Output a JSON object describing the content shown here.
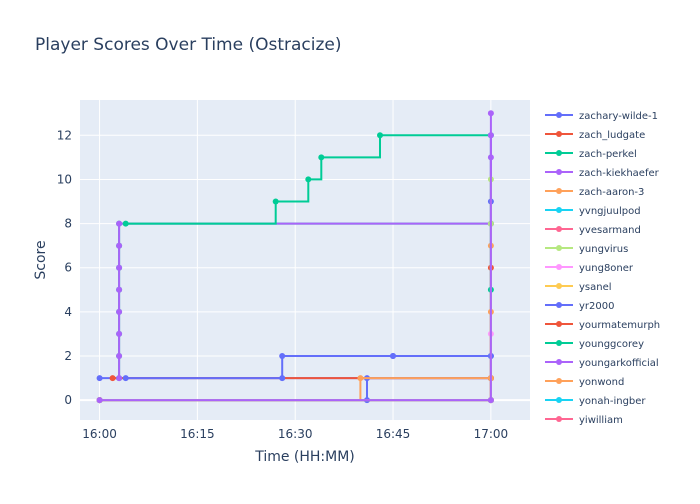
{
  "chart_data": {
    "type": "line",
    "line_shape": "step",
    "title": "Player Scores Over Time (Ostracize)",
    "xlabel": "Time (HH:MM)",
    "ylabel": "Score",
    "xlim": [
      "15:57",
      "17:06"
    ],
    "ylim": [
      -0.9,
      13.6
    ],
    "x_ticks": [
      "16:00",
      "16:15",
      "16:30",
      "16:45",
      "17:00"
    ],
    "y_ticks": [
      0,
      2,
      4,
      6,
      8,
      10,
      12
    ],
    "grid": true,
    "legend_position": "right",
    "series": [
      {
        "name": "zachary-wilde-1",
        "color": "#636efa",
        "x": [
          "16:00",
          "17:00",
          "17:00"
        ],
        "y": [
          1,
          1,
          9
        ]
      },
      {
        "name": "zach_ludgate",
        "color": "#EF553B",
        "x": [
          "16:02",
          "17:00",
          "17:00"
        ],
        "y": [
          1,
          1,
          6
        ]
      },
      {
        "name": "zach-perkel",
        "color": "#00cc96",
        "x": [
          "16:03",
          "16:03",
          "16:03",
          "16:03",
          "16:03",
          "16:03",
          "16:03",
          "16:03",
          "17:00"
        ],
        "y": [
          1,
          2,
          3,
          4,
          5,
          6,
          7,
          8,
          8
        ]
      },
      {
        "name": "zach-kiekhaefer",
        "color": "#ab63fa",
        "x": [
          "16:03",
          "16:03",
          "16:03",
          "16:03",
          "16:03",
          "16:03",
          "16:03",
          "16:03",
          "17:00",
          "17:00"
        ],
        "y": [
          1,
          2,
          3,
          4,
          5,
          6,
          7,
          8,
          8,
          11
        ]
      },
      {
        "name": "zach-aaron-3",
        "color": "#FFA15A",
        "x": [
          "16:00",
          "17:00",
          "17:00"
        ],
        "y": [
          0,
          0,
          7
        ]
      },
      {
        "name": "yvngjuulpod",
        "color": "#19d3f3",
        "x": [
          "16:00",
          "17:00"
        ],
        "y": [
          0,
          0
        ]
      },
      {
        "name": "yvesarmand",
        "color": "#FF6692",
        "x": [
          "16:00",
          "17:00",
          "17:00"
        ],
        "y": [
          0,
          0,
          1
        ]
      },
      {
        "name": "yungvirus",
        "color": "#B6E880",
        "x": [
          "16:00",
          "17:00",
          "17:00"
        ],
        "y": [
          0,
          0,
          8
        ]
      },
      {
        "name": "yung8oner",
        "color": "#FF97FF",
        "x": [
          "16:00",
          "17:00",
          "17:00"
        ],
        "y": [
          0,
          0,
          3
        ]
      },
      {
        "name": "ysanel",
        "color": "#FECB52",
        "x": [
          "16:00",
          "17:00",
          "17:00"
        ],
        "y": [
          0,
          0,
          1
        ]
      },
      {
        "name": "yr2000",
        "color": "#636efa",
        "x": [
          "16:00",
          "16:41",
          "16:41",
          "17:00",
          "17:00"
        ],
        "y": [
          0,
          0,
          1,
          1,
          2
        ]
      },
      {
        "name": "yourmatemurph",
        "color": "#EF553B",
        "x": [
          "16:00",
          "17:00",
          "17:00"
        ],
        "y": [
          0,
          0,
          1
        ]
      },
      {
        "name": "younggcorey",
        "color": "#00cc96",
        "x": [
          "16:04",
          "16:27",
          "16:32",
          "16:34",
          "16:43",
          "17:00",
          "17:00"
        ],
        "y": [
          8,
          9,
          10,
          11,
          12,
          12,
          5
        ]
      },
      {
        "name": "youngarkofficial",
        "color": "#ab63fa",
        "x": [
          "16:00",
          "17:00",
          "17:00"
        ],
        "y": [
          0,
          0,
          13
        ]
      },
      {
        "name": "yonwond",
        "color": "#FFA15A",
        "x": [
          "16:00",
          "16:40",
          "17:00",
          "17:00"
        ],
        "y": [
          0,
          1,
          1,
          4
        ]
      },
      {
        "name": "yonah-ingber",
        "color": "#19d3f3",
        "x": [
          "16:00",
          "17:00"
        ],
        "y": [
          0,
          0
        ]
      },
      {
        "name": "yiwilliam",
        "color": "#FF6692",
        "x": [
          "16:00",
          "17:00"
        ],
        "y": [
          0,
          0
        ]
      },
      {
        "name": "",
        "color": "#636efa",
        "x": [
          "16:04",
          "16:28",
          "16:28",
          "16:45",
          "16:45",
          "17:00"
        ],
        "y": [
          1,
          1,
          2,
          2,
          2,
          2
        ]
      },
      {
        "name": "",
        "color": "#B6E880",
        "x": [
          "16:00",
          "17:00",
          "17:00"
        ],
        "y": [
          0,
          0,
          10
        ]
      },
      {
        "name": "",
        "color": "#ab63fa",
        "x": [
          "16:00",
          "17:00",
          "17:00"
        ],
        "y": [
          0,
          0,
          12
        ]
      }
    ]
  }
}
